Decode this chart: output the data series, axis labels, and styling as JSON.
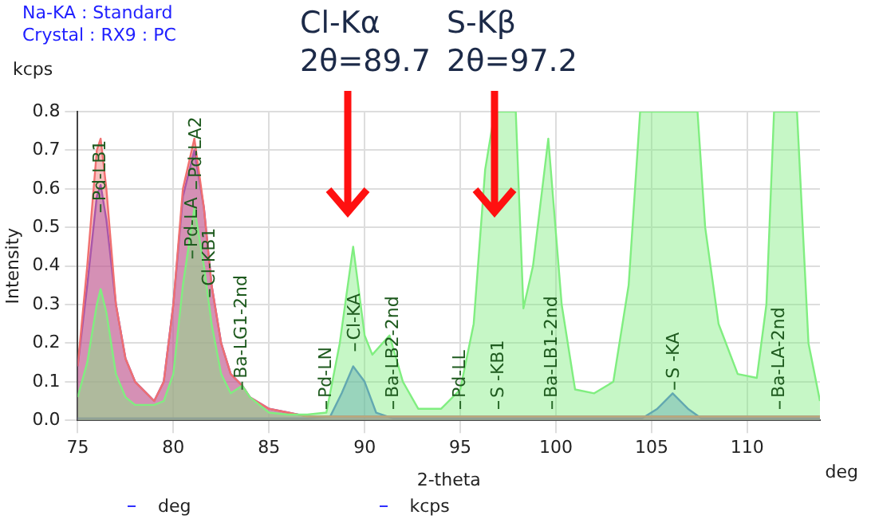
{
  "chart_data": {
    "type": "area",
    "xlabel": "2-theta",
    "ylabel": "Intensity",
    "xlim": [
      75,
      113.8
    ],
    "xticks": [
      75,
      80,
      85,
      90,
      95,
      100,
      105,
      110
    ],
    "ylim": [
      0,
      0.8
    ],
    "yticks": [
      {
        "value": 0,
        "label": "0.0"
      },
      0.1,
      0.2,
      0.3,
      0.4,
      0.5,
      0.6,
      0.7,
      0.8
    ],
    "grid": true,
    "series": [
      {
        "color": "#80ee80",
        "x": [
          75,
          75.5,
          76.0,
          76.2,
          76.5,
          77,
          77.5,
          78,
          79,
          79.5,
          80,
          80.5,
          81.1,
          81.6,
          82,
          82.5,
          83,
          83.6,
          84,
          85,
          86,
          87,
          88,
          88.7,
          89.4,
          90.0,
          90.4,
          91.3,
          92,
          92.8,
          94,
          95,
          95.7,
          96.3,
          96.8,
          97.9,
          98.3,
          98.8,
          99.6,
          100.3,
          101,
          102,
          103,
          103.8,
          104.4,
          107.4,
          107.8,
          108.5,
          109.5,
          110.5,
          111,
          111.4,
          112.6,
          113.2,
          113.8
        ],
        "values": [
          0.06,
          0.15,
          0.3,
          0.34,
          0.28,
          0.12,
          0.06,
          0.04,
          0.04,
          0.05,
          0.12,
          0.35,
          0.55,
          0.4,
          0.25,
          0.12,
          0.07,
          0.09,
          0.06,
          0.02,
          0.015,
          0.015,
          0.02,
          0.2,
          0.45,
          0.22,
          0.17,
          0.22,
          0.1,
          0.03,
          0.03,
          0.08,
          0.25,
          0.65,
          0.8,
          0.8,
          0.29,
          0.4,
          0.73,
          0.3,
          0.08,
          0.07,
          0.1,
          0.35,
          0.8,
          0.8,
          0.5,
          0.25,
          0.12,
          0.11,
          0.3,
          0.8,
          0.8,
          0.2,
          0.05
        ]
      },
      {
        "color": "#f07070",
        "x": [
          75,
          75.5,
          76.0,
          76.2,
          76.5,
          77,
          77.5,
          78,
          79,
          79.5,
          80,
          80.5,
          81.1,
          81.6,
          82,
          82.5,
          83,
          83.6,
          84,
          85,
          86,
          87,
          113.8
        ],
        "values": [
          0.14,
          0.4,
          0.7,
          0.73,
          0.6,
          0.3,
          0.16,
          0.1,
          0.05,
          0.1,
          0.3,
          0.6,
          0.73,
          0.55,
          0.35,
          0.2,
          0.12,
          0.09,
          0.06,
          0.03,
          0.02,
          0.01,
          0.01
        ]
      },
      {
        "color": "#7040d8",
        "x": [
          75,
          75.5,
          76.0,
          76.2,
          76.5,
          77,
          77.5,
          78,
          79,
          79.5,
          80,
          80.5,
          81.1,
          81.6,
          82,
          82.5,
          83,
          83.6,
          84,
          85,
          86,
          87,
          113.8
        ],
        "values": [
          0.14,
          0.35,
          0.58,
          0.61,
          0.52,
          0.3,
          0.16,
          0.1,
          0.05,
          0.1,
          0.3,
          0.58,
          0.7,
          0.55,
          0.35,
          0.2,
          0.12,
          0.09,
          0.06,
          0.03,
          0.02,
          0.01,
          0.01
        ]
      },
      {
        "color": "#4a70d8",
        "x": [
          75,
          87,
          88.2,
          88.8,
          89.4,
          90,
          90.6,
          91.5,
          104.5,
          105.3,
          106.1,
          106.9,
          107.6,
          113.8
        ],
        "values": [
          0.005,
          0.005,
          0.01,
          0.07,
          0.14,
          0.1,
          0.02,
          0.005,
          0.005,
          0.03,
          0.07,
          0.03,
          0.005,
          0.005
        ]
      }
    ],
    "annotations": [
      "Na-KA : Standard",
      "Crystal : RX9 : PC",
      "kcps",
      "deg",
      "deg",
      "kcps",
      "Cl-Kα\n2θ=89.7",
      "S-Kβ\n2θ=97.2",
      "Cl-KA",
      "Ba-LB2-2nd",
      "S -KB1",
      "Ba-LB1-2nd",
      "S -KA",
      "Ba-LA-2nd",
      {
        "text": "Pd-LB1",
        "x": 76.2,
        "y": 0.56
      },
      {
        "text": "Pd-LA",
        "x": 81.0,
        "y": 0.44
      },
      {
        "text": "Pd-LA2",
        "x": 81.2,
        "y": 0.62
      },
      {
        "text": "Cl-KB1",
        "x": 81.9,
        "y": 0.34
      },
      {
        "text": "Ba-LG1-2nd",
        "x": 83.6,
        "y": 0.1
      },
      {
        "text": "Pd-LN",
        "x": 88.0,
        "y": 0.05
      },
      {
        "text": "Pd-LL",
        "x": 95.0,
        "y": 0.05
      }
    ]
  }
}
